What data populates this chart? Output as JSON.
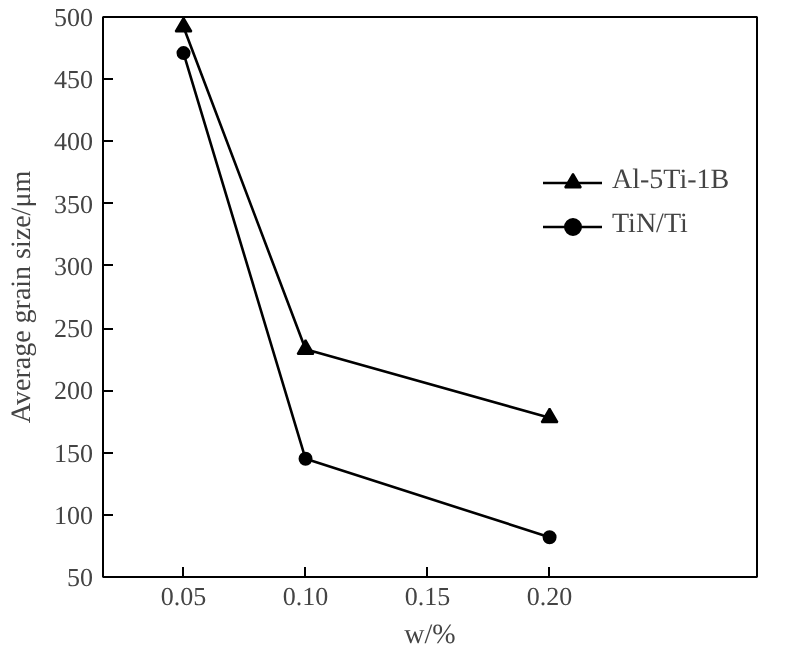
{
  "chart_data": {
    "type": "line",
    "xlabel": "w/%",
    "ylabel": "Average grain size/μm",
    "x": [
      0.05,
      0.1,
      0.2
    ],
    "series": [
      {
        "name": "Al-5Ti-1B",
        "color": "#000000",
        "marker": "triangle",
        "values": [
          492,
          233,
          178
        ]
      },
      {
        "name": "TiN/Ti",
        "color": "#000000",
        "marker": "circle",
        "values": [
          471,
          145,
          82
        ]
      }
    ],
    "xlim": [
      0.017,
      0.285
    ],
    "xticks": [
      0.05,
      {
        "value": 0.1,
        "label": "0.10"
      },
      0.15,
      {
        "value": 0.2,
        "label": "0.20"
      }
    ],
    "ylim": [
      50,
      500
    ],
    "yticks": [
      50,
      100,
      150,
      200,
      250,
      300,
      350,
      400,
      450,
      500
    ],
    "legend": "right",
    "grid": false,
    "line_style": "solid"
  }
}
